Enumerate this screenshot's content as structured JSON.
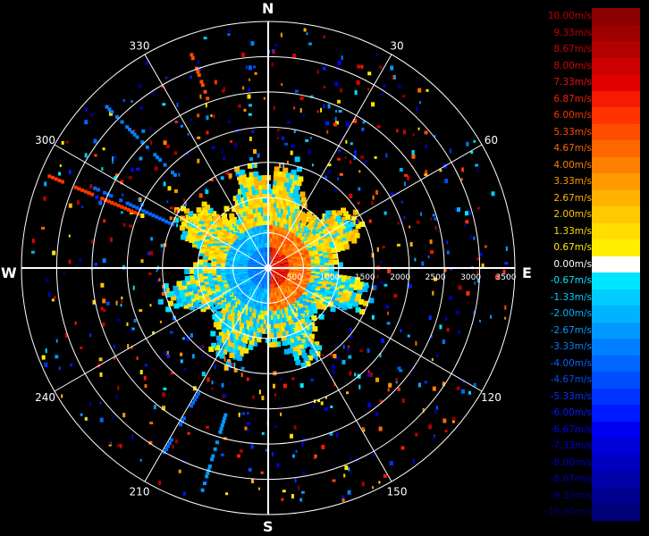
{
  "compass": {
    "north": "N",
    "east": "E",
    "south": "S",
    "west": "W"
  },
  "bearing_labels": [
    "30",
    "60",
    "120",
    "150",
    "210",
    "240",
    "300",
    "330"
  ],
  "range_labels": [
    "500",
    "1000",
    "1500",
    "2000",
    "2500",
    "3000",
    "3500"
  ],
  "legend": [
    {
      "label": "10.00m/s",
      "color": "#8b0000",
      "text_color": "#c00000"
    },
    {
      "label": "9.33m/s",
      "color": "#9e0000",
      "text_color": "#c00000"
    },
    {
      "label": "8.67m/s",
      "color": "#b30000",
      "text_color": "#d00000"
    },
    {
      "label": "8.00m/s",
      "color": "#cc0000",
      "text_color": "#e00000"
    },
    {
      "label": "7.33m/s",
      "color": "#e00000",
      "text_color": "#ee1010"
    },
    {
      "label": "6.87m/s",
      "color": "#f51a00",
      "text_color": "#f52000"
    },
    {
      "label": "6.00m/s",
      "color": "#ff3300",
      "text_color": "#ff3300"
    },
    {
      "label": "5.33m/s",
      "color": "#ff4d00",
      "text_color": "#ff4d00"
    },
    {
      "label": "4.67m/s",
      "color": "#ff6600",
      "text_color": "#ff6600"
    },
    {
      "label": "4.00m/s",
      "color": "#ff8000",
      "text_color": "#ff8000"
    },
    {
      "label": "3.33m/s",
      "color": "#ff9900",
      "text_color": "#ff9900"
    },
    {
      "label": "2.67m/s",
      "color": "#ffb300",
      "text_color": "#ffb300"
    },
    {
      "label": "2.00m/s",
      "color": "#ffc800",
      "text_color": "#ffc800"
    },
    {
      "label": "1.33m/s",
      "color": "#ffdd00",
      "text_color": "#ffdd00"
    },
    {
      "label": "0.67m/s",
      "color": "#ffee00",
      "text_color": "#ffee00"
    },
    {
      "label": "0.00m/s",
      "color": "#ffffff",
      "text_color": "#ffffff"
    },
    {
      "label": "-0.67m/s",
      "color": "#00e5ff",
      "text_color": "#00e5ff"
    },
    {
      "label": "-1.33m/s",
      "color": "#00ccff",
      "text_color": "#00ccff"
    },
    {
      "label": "-2.00m/s",
      "color": "#00b3ff",
      "text_color": "#00b3ff"
    },
    {
      "label": "-2.67m/s",
      "color": "#0099ff",
      "text_color": "#0099ff"
    },
    {
      "label": "-3.33m/s",
      "color": "#0080ff",
      "text_color": "#0080ff"
    },
    {
      "label": "-4.00m/s",
      "color": "#0066ff",
      "text_color": "#0066ff"
    },
    {
      "label": "-4.67m/s",
      "color": "#004dff",
      "text_color": "#004dff"
    },
    {
      "label": "-5.33m/s",
      "color": "#0033ff",
      "text_color": "#0033ff"
    },
    {
      "label": "-6.00m/s",
      "color": "#001aff",
      "text_color": "#001aff"
    },
    {
      "label": "-6.67m/s",
      "color": "#0000f0",
      "text_color": "#0000f0"
    },
    {
      "label": "-7.33m/s",
      "color": "#0000d9",
      "text_color": "#0000d9"
    },
    {
      "label": "-8.00m/s",
      "color": "#0000c0",
      "text_color": "#0000c0"
    },
    {
      "label": "-8.67m/s",
      "color": "#0000a8",
      "text_color": "#0000a8"
    },
    {
      "label": "-9.33m/s",
      "color": "#000090",
      "text_color": "#000090"
    },
    {
      "label": "-10.00m/s",
      "color": "#000078",
      "text_color": "#000078"
    }
  ]
}
